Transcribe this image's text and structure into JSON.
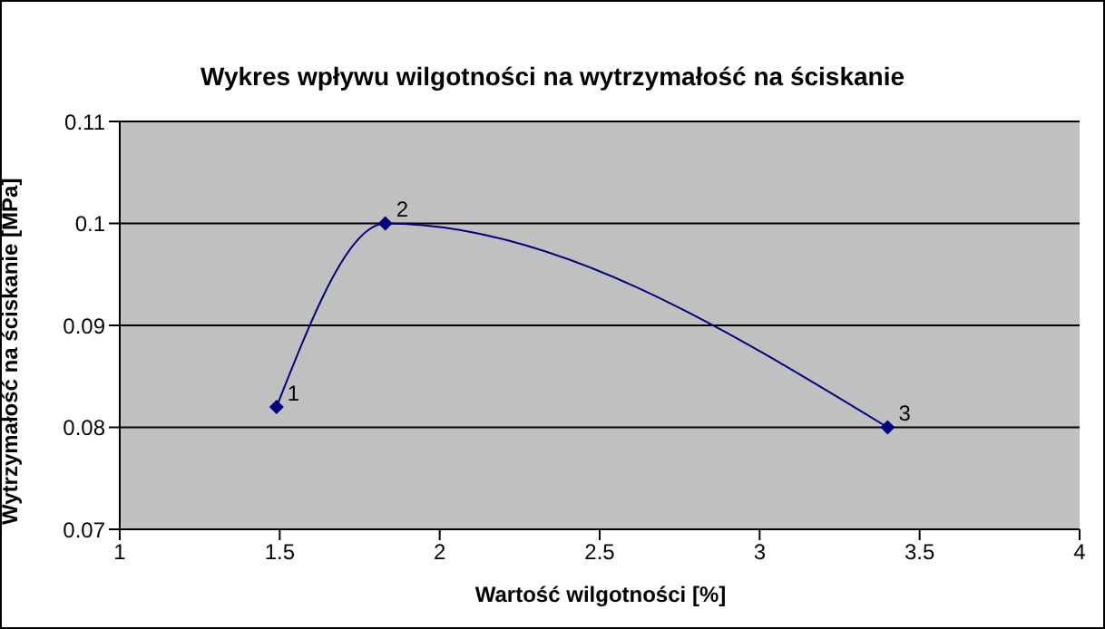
{
  "chart_data": {
    "type": "line",
    "title": "Wykres wpływu wilgotności na wytrzymałość na ściskanie",
    "xlabel": "Wartość wilgotności [%]",
    "ylabel": "Wytrzymałość na ściskanie [MPa]",
    "x": [
      1.49,
      1.83,
      3.4
    ],
    "series": [
      {
        "color": "#000080",
        "values": [
          0.082,
          0.1,
          0.08
        ]
      }
    ],
    "xlim": [
      1,
      4
    ],
    "xticks": [
      1,
      1.5,
      2,
      2.5,
      3,
      3.5,
      4
    ],
    "ylim": [
      0.07,
      0.11
    ],
    "yticks": [
      0.07,
      0.08,
      0.09,
      0.1,
      0.11
    ],
    "grid": "y",
    "legend": false,
    "marker": "diamond",
    "line_style": "solid",
    "annotations": [
      {
        "text": "1",
        "x": 1.49,
        "y": 0.082
      },
      {
        "text": "2",
        "x": 1.83,
        "y": 0.1
      },
      {
        "text": "3",
        "x": 3.4,
        "y": 0.08
      }
    ]
  }
}
